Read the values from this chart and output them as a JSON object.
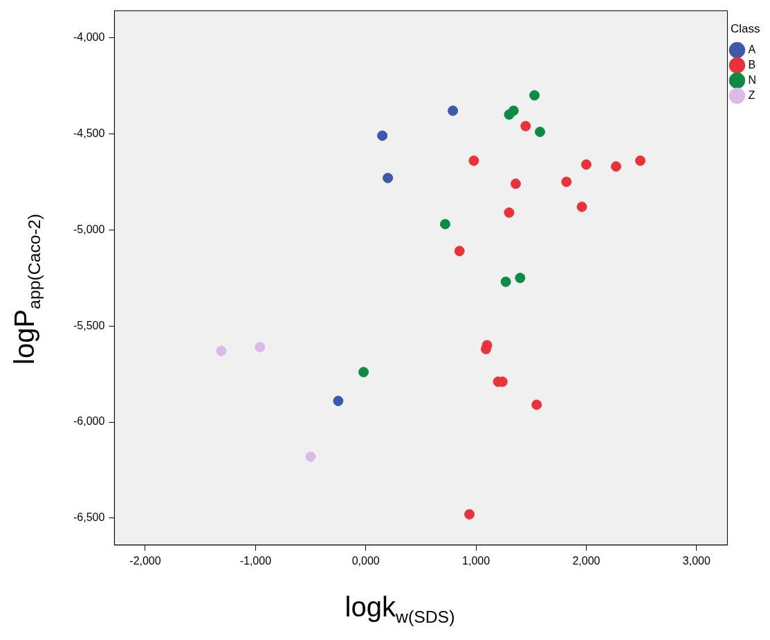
{
  "chart_data": {
    "type": "scatter",
    "xlabel": "logk$_{w(SDS)}$",
    "ylabel": "logP$_{app(Caco-2)}$",
    "legend_title": "Class",
    "legend": "top right",
    "marker": "circle",
    "grid": false,
    "xlim": [
      -2280,
      3280
    ],
    "ylim": [
      -6640,
      -3860
    ],
    "xticks": [
      {
        "value": -2000,
        "label": "-2,000"
      },
      {
        "value": -1000,
        "label": "-1,000"
      },
      {
        "value": 0,
        "label": "0,000"
      },
      {
        "value": 1000,
        "label": "1,000"
      },
      {
        "value": 2000,
        "label": "2,000"
      },
      {
        "value": 3000,
        "label": "3,000"
      }
    ],
    "yticks": [
      {
        "value": -6500,
        "label": "-6,500"
      },
      {
        "value": -6000,
        "label": "-6,000"
      },
      {
        "value": -5500,
        "label": "-5,500"
      },
      {
        "value": -5000,
        "label": "-5,000"
      },
      {
        "value": -4500,
        "label": "-4,500"
      },
      {
        "value": -4000,
        "label": "-4,000"
      }
    ],
    "series": [
      {
        "name": "A",
        "color": "#3e58ac",
        "x": [
          790,
          150,
          200,
          -250
        ],
        "values": [
          -4380,
          -4510,
          -4730,
          -5890
        ]
      },
      {
        "name": "B",
        "color": "#e8333a",
        "x": [
          1450,
          980,
          2000,
          2270,
          2490,
          1360,
          1820,
          1960,
          1300,
          850,
          1100,
          1090,
          1200,
          1240,
          1550,
          940
        ],
        "values": [
          -4460,
          -4640,
          -4660,
          -4670,
          -4640,
          -4760,
          -4750,
          -4880,
          -4910,
          -5110,
          -5600,
          -5620,
          -5790,
          -5790,
          -5910,
          -6480
        ]
      },
      {
        "name": "N",
        "color": "#0f8a45",
        "x": [
          1530,
          1340,
          1300,
          1580,
          720,
          1270,
          1400,
          -20
        ],
        "values": [
          -4300,
          -4380,
          -4400,
          -4490,
          -4970,
          -5270,
          -5250,
          -5740
        ]
      },
      {
        "name": "Z",
        "color": "#dcb8ec",
        "x": [
          -1310,
          -960,
          -500
        ],
        "values": [
          -5630,
          -5610,
          -6180
        ]
      }
    ]
  }
}
